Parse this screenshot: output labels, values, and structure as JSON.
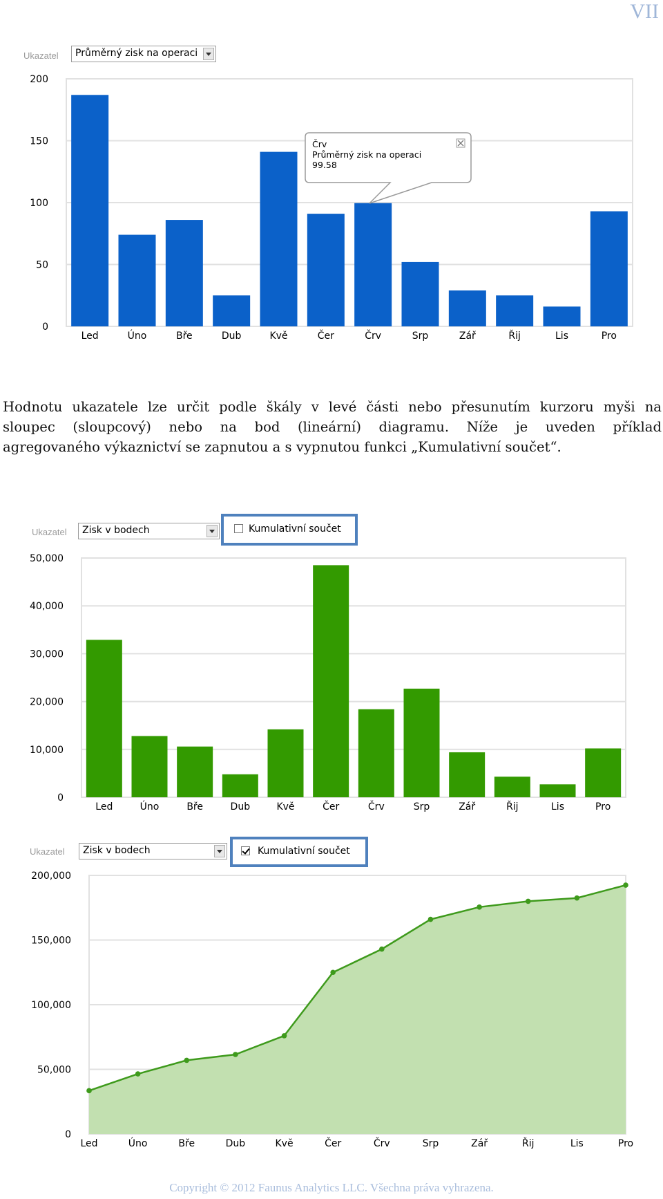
{
  "page": {
    "page_number": "VII",
    "body_lines": [
      "Hodnotu ukazatele lze určit  podle škály v levé části nebo přesunutím kurzoru myši na",
      "sloupec (sloupcový) nebo na bod (lineární) diagramu.  Níže je uveden příklad",
      "agregovaného výkaznictví se zapnutou a s vypnutou funkci „Kumulativní součet“."
    ],
    "footer": "Copyright © 2012 Faunus Analytics LLC. Všechna práva vyhrazena."
  },
  "chart1_controls": {
    "label": "Ukazatel",
    "selected": "Průměrný zisk na operaci"
  },
  "chart2_controls": {
    "label": "Ukazatel",
    "selected": "Zisk v bodech",
    "checkbox_label": "Kumulativní součet",
    "checked": false
  },
  "chart3_controls": {
    "label": "Ukazatel",
    "selected": "Zisk v bodech",
    "checkbox_label": "Kumulativní součet",
    "checked": true
  },
  "colors": {
    "blue_bar": "#0b61c9",
    "green_bar": "#339a00",
    "green_line": "#3e9a1c",
    "green_area": "#c2e0b0",
    "grid": "#e1e1e1",
    "frame": "#4f81bd"
  },
  "chart_data": [
    {
      "type": "bar",
      "categories": [
        "Led",
        "Úno",
        "Bře",
        "Dub",
        "Kvě",
        "Čer",
        "Črv",
        "Srp",
        "Zář",
        "Řij",
        "Lis",
        "Pro"
      ],
      "values": [
        187,
        74,
        86,
        25,
        141,
        91,
        99.58,
        52,
        29,
        25,
        16,
        93
      ],
      "yticks": [
        "0",
        "50",
        "100",
        "150",
        "200"
      ],
      "ylim": [
        0,
        200
      ],
      "grid": true,
      "tooltip": {
        "category": "Črv",
        "series": "Průměrný zisk na operaci",
        "value": "99.58"
      }
    },
    {
      "type": "bar",
      "categories": [
        "Led",
        "Úno",
        "Bře",
        "Dub",
        "Kvě",
        "Čer",
        "Črv",
        "Srp",
        "Zář",
        "Řij",
        "Lis",
        "Pro"
      ],
      "values": [
        32900,
        12800,
        10600,
        4800,
        14200,
        48500,
        18400,
        22700,
        9400,
        4300,
        2700,
        10200
      ],
      "yticks": [
        "0",
        "10,000",
        "20,000",
        "30,000",
        "40,000",
        "50,000"
      ],
      "ylim": [
        0,
        50000
      ],
      "grid": true
    },
    {
      "type": "area",
      "categories": [
        "Led",
        "Úno",
        "Bře",
        "Dub",
        "Kvě",
        "Čer",
        "Črv",
        "Srp",
        "Zář",
        "Řij",
        "Lis",
        "Pro"
      ],
      "values": [
        33500,
        46500,
        57000,
        61500,
        76000,
        125000,
        143000,
        166000,
        175500,
        180000,
        182500,
        192500
      ],
      "yticks": [
        "0",
        "50,000",
        "100,000",
        "150,000",
        "200,000"
      ],
      "ylim": [
        0,
        200000
      ],
      "grid": true
    }
  ]
}
